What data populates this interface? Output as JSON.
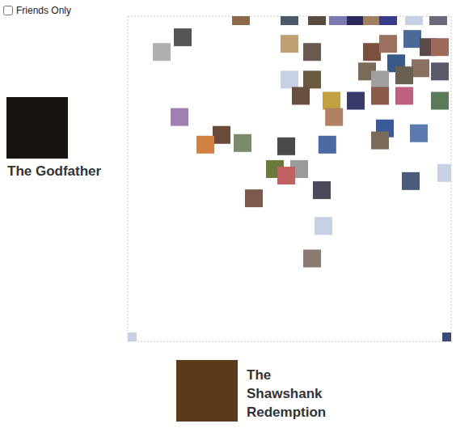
{
  "chart_data": {
    "type": "scatter",
    "checkbox_label": "Friends Only",
    "x_label": "The Shawshank Redemption",
    "y_label": "The Godfather",
    "x": [
      0,
      10,
      3.5,
      5,
      5.85,
      6.5,
      7.05,
      7.55,
      8.05,
      8.85,
      9.6,
      1.7,
      1.05,
      5,
      5.7,
      7.55,
      8.05,
      8.8,
      9.3,
      9.65,
      7.4,
      8.3,
      9.05,
      9.65,
      7.8,
      8.55,
      5,
      5.7,
      5.35,
      6.3,
      7.05,
      7.8,
      8.55,
      9.65,
      6.38,
      1.6,
      2.9,
      2.4,
      3.55,
      4.9,
      6.17,
      7.95,
      7.8,
      9,
      4.55,
      5.3,
      4.9,
      6,
      8.75,
      9.85,
      3.9,
      6.05,
      5.7
    ],
    "values": [
      0,
      0,
      10,
      10,
      10,
      10,
      10,
      10,
      10,
      10,
      10,
      9.35,
      8.9,
      9.15,
      8.9,
      8.9,
      9.15,
      9.3,
      9.05,
      9.05,
      8.3,
      8.55,
      8.4,
      8.3,
      8.05,
      8.18,
      8.05,
      8.05,
      7.55,
      7.4,
      7.4,
      7.55,
      7.55,
      7.4,
      6.9,
      6.9,
      6.35,
      6.05,
      6.1,
      6,
      6.05,
      6.55,
      6.18,
      6.4,
      5.3,
      5.3,
      5.1,
      4.65,
      4.93,
      5.18,
      4.4,
      3.55,
      2.55
    ],
    "colors": [
      "#c8d0e4",
      "#3a4a7a",
      "#8a6a4a",
      "#4a5a6a",
      "#5a4a40",
      "#7a7ab0",
      "#2a2a5a",
      "#a08060",
      "#3a3a8a",
      "#c8d0e4",
      "#6a6a7a",
      "#555555",
      "#b0b0b0",
      "#c0a070",
      "#6a5a50",
      "#7a5040",
      "#9a7060",
      "#4a6a9a",
      "#5a4a4a",
      "#a06a5a",
      "#7a6a5a",
      "#3a5a8a",
      "#8a7060",
      "#5a5a6a",
      "#a0a0a0",
      "#6a6050",
      "#c8d0e4",
      "#6a5a40",
      "#6a5040",
      "#c0a040",
      "#3a3a6a",
      "#8a5a4a",
      "#c06080",
      "#5a7a5a",
      "#b08060",
      "#a080b0",
      "#6a4a3a",
      "#d08040",
      "#7a8a6a",
      "#4a4a4a",
      "#4a6aa0",
      "#3a5a9a",
      "#7a6a5a",
      "#5a7ab0",
      "#6a7a3a",
      "#9a9a9a",
      "#c06060",
      "#4a4a5a",
      "#4a5a7a",
      "#c8d0e4",
      "#7a5a4a",
      "#c8d0e4",
      "#8a7a70"
    ],
    "xlim": [
      0,
      10
    ],
    "ylim": [
      0,
      10
    ],
    "xticks": [
      0,
      1,
      2,
      3,
      4,
      5,
      6,
      7,
      8,
      9,
      10
    ],
    "yticks": [
      0,
      1,
      2,
      3,
      4,
      5,
      6,
      7,
      8,
      9,
      10
    ],
    "grid": true,
    "tick_labels": false,
    "marker": "square"
  }
}
